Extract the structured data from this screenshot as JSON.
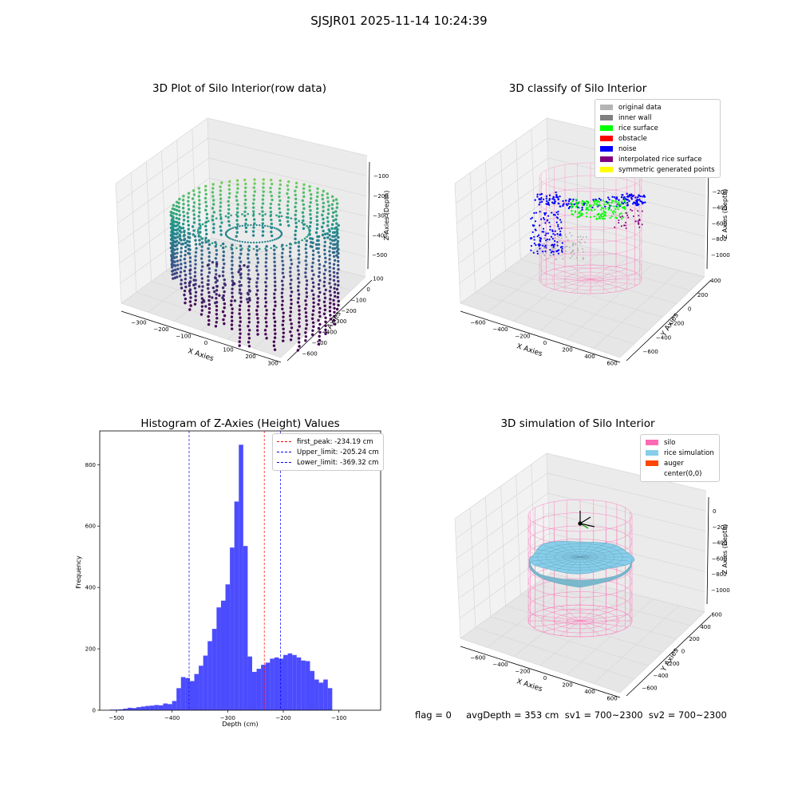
{
  "figure": {
    "suptitle": "SJSJR01 2025-11-14 10:24:39"
  },
  "panel1": {
    "title": "3D Plot of Silo Interior(row data)",
    "xlabel": "X Axies",
    "ylabel": "Y Axies",
    "zlabel": "Z Axies (Depth)",
    "xticks": [
      "−300",
      "−200",
      "−100",
      "0",
      "100",
      "200",
      "300"
    ],
    "yticks": [
      "100",
      "0",
      "−100",
      "−200",
      "−300",
      "−400",
      "−500",
      "−600"
    ],
    "zticks": [
      "−100",
      "−200",
      "−300",
      "−400",
      "−500"
    ]
  },
  "panel2": {
    "title": "3D classify of Silo Interior",
    "xlabel": "X Axies",
    "ylabel": "Y Axies",
    "zlabel": "Z Axies (Depth)",
    "xticks": [
      "−600",
      "−400",
      "−200",
      "0",
      "200",
      "400",
      "600"
    ],
    "yticks": [
      "400",
      "200",
      "0",
      "−200",
      "−400",
      "−600"
    ],
    "zticks": [
      "0",
      "−200",
      "−400",
      "−600",
      "−800",
      "−1000"
    ],
    "legend": [
      {
        "label": "original data",
        "color": "#b4b4b4"
      },
      {
        "label": "inner wall",
        "color": "#808080"
      },
      {
        "label": "rice surface",
        "color": "#00ff00"
      },
      {
        "label": "obstacle",
        "color": "#ff0000"
      },
      {
        "label": "noise",
        "color": "#0000ff"
      },
      {
        "label": "interpolated rice surface",
        "color": "#800080"
      },
      {
        "label": "symmetric generated points",
        "color": "#ffff00"
      }
    ]
  },
  "panel4": {
    "title": "3D simulation of Silo Interior",
    "xlabel": "X Axies",
    "ylabel": "Y Axies",
    "zlabel": "Z Axies (Depth)",
    "xticks": [
      "−600",
      "−400",
      "−200",
      "0",
      "200",
      "400",
      "600"
    ],
    "yticks": [
      "600",
      "400",
      "200",
      "0",
      "−200",
      "−400",
      "−600"
    ],
    "zticks": [
      "0",
      "−200",
      "−400",
      "−600",
      "−800",
      "−1000"
    ],
    "legend": [
      {
        "label": "silo",
        "color": "#ff69b4"
      },
      {
        "label": "rice simulation",
        "color": "#87ceeb"
      },
      {
        "label": "auger",
        "color": "#ff4500"
      },
      {
        "label": "center(0,0)",
        "color": "#ffffff"
      }
    ]
  },
  "status": {
    "text": "flag = 0     avgDepth = 353 cm  sv1 = 700~2300  sv2 = 700~2300"
  },
  "chart_data": [
    {
      "type": "histogram",
      "title": "Histogram of Z-Axies (Height) Values",
      "xlabel": "Depth (cm)",
      "ylabel": "Frequency",
      "xlim": [
        -530,
        -25
      ],
      "ylim": [
        0,
        910
      ],
      "xticks": [
        -500,
        -400,
        -300,
        -200,
        -100
      ],
      "yticks": [
        0,
        200,
        400,
        600,
        800
      ],
      "bin_start": -512,
      "bin_width": 8,
      "values": [
        2,
        2,
        3,
        5,
        8,
        7,
        10,
        12,
        14,
        15,
        17,
        16,
        22,
        20,
        30,
        72,
        108,
        105,
        95,
        118,
        145,
        178,
        225,
        265,
        335,
        357,
        410,
        530,
        680,
        865,
        535,
        175,
        125,
        135,
        148,
        155,
        168,
        172,
        168,
        180,
        185,
        180,
        172,
        162,
        160,
        128,
        100,
        90,
        100,
        72
      ],
      "color": "#0000ff",
      "vlines": [
        {
          "label": "first_peak: -234.19 cm",
          "x": -234.19,
          "color": "#ff0000"
        },
        {
          "label": "Upper_limit: -205.24 cm",
          "x": -205.24,
          "color": "#0000ff"
        },
        {
          "label": "Lower_limit: -369.32 cm",
          "x": -369.32,
          "color": "#0000ff"
        }
      ]
    }
  ]
}
